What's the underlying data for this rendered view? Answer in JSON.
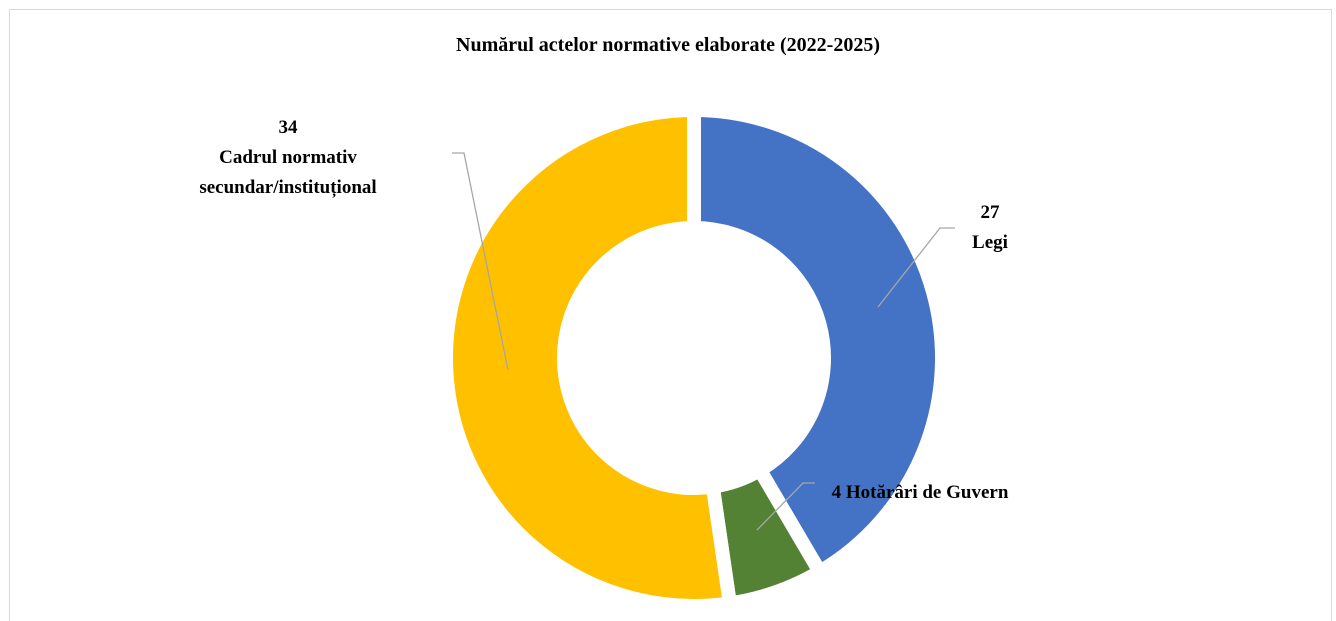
{
  "chart_data": {
    "type": "donut",
    "title": "Numărul actelor normative elaborate (2022-2025)",
    "categories": [
      "Legi",
      "Hotărâri de Guvern",
      "Cadrul normativ secundar/instituțional"
    ],
    "values": [
      27,
      4,
      34
    ],
    "colors": [
      "#4472c4",
      "#548235",
      "#ffc000"
    ]
  }
}
